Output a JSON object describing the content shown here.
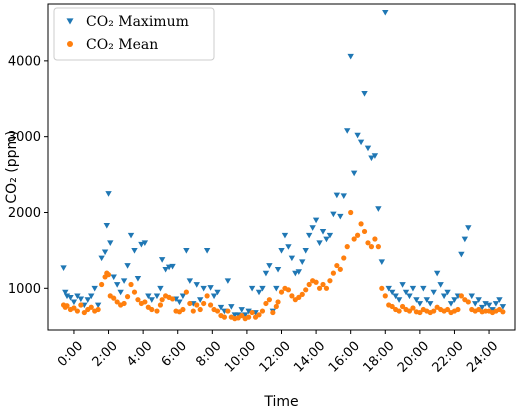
{
  "chart_data": {
    "type": "scatter",
    "xlabel": "Time",
    "ylabel": "CO₂ (ppm)",
    "xlim": [
      -1.5,
      25.5
    ],
    "ylim": [
      450,
      4750
    ],
    "x_ticks": [
      0,
      2,
      4,
      6,
      8,
      10,
      12,
      14,
      16,
      18,
      20,
      22,
      24
    ],
    "x_tick_labels": [
      "0:00",
      "2:00",
      "4:00",
      "6:00",
      "8:00",
      "10:00",
      "12:00",
      "14:00",
      "16:00",
      "18:00",
      "20:00",
      "22:00",
      "24:00"
    ],
    "y_ticks": [
      1000,
      2000,
      3000,
      4000
    ],
    "y_tick_labels": [
      "1000",
      "2000",
      "3000",
      "4000"
    ],
    "grid": false,
    "legend_position": "top-left",
    "series": [
      {
        "name": "CO₂ Maximum",
        "marker": "triangle-down",
        "color": "#1f77b4",
        "points": [
          [
            -0.6,
            1270
          ],
          [
            -0.5,
            950
          ],
          [
            -0.4,
            900
          ],
          [
            -0.2,
            880
          ],
          [
            0.0,
            820
          ],
          [
            0.2,
            900
          ],
          [
            0.4,
            860
          ],
          [
            0.6,
            780
          ],
          [
            0.8,
            850
          ],
          [
            1.0,
            900
          ],
          [
            1.2,
            1000
          ],
          [
            1.4,
            780
          ],
          [
            1.6,
            1400
          ],
          [
            1.8,
            1480
          ],
          [
            1.9,
            1830
          ],
          [
            2.0,
            2250
          ],
          [
            2.1,
            1600
          ],
          [
            2.3,
            1150
          ],
          [
            2.5,
            1050
          ],
          [
            2.7,
            950
          ],
          [
            2.9,
            1100
          ],
          [
            3.1,
            1300
          ],
          [
            3.3,
            1700
          ],
          [
            3.5,
            1500
          ],
          [
            3.7,
            1130
          ],
          [
            3.9,
            1580
          ],
          [
            4.1,
            1600
          ],
          [
            4.3,
            900
          ],
          [
            4.5,
            850
          ],
          [
            4.8,
            900
          ],
          [
            5.0,
            1000
          ],
          [
            5.1,
            1380
          ],
          [
            5.3,
            1250
          ],
          [
            5.5,
            1280
          ],
          [
            5.7,
            1290
          ],
          [
            5.9,
            860
          ],
          [
            6.1,
            820
          ],
          [
            6.3,
            900
          ],
          [
            6.5,
            1500
          ],
          [
            6.7,
            1100
          ],
          [
            6.9,
            800
          ],
          [
            7.1,
            1050
          ],
          [
            7.3,
            850
          ],
          [
            7.5,
            1000
          ],
          [
            7.7,
            1500
          ],
          [
            7.9,
            1010
          ],
          [
            8.1,
            900
          ],
          [
            8.3,
            950
          ],
          [
            8.5,
            750
          ],
          [
            8.7,
            700
          ],
          [
            8.9,
            1100
          ],
          [
            9.1,
            760
          ],
          [
            9.3,
            650
          ],
          [
            9.5,
            650
          ],
          [
            9.7,
            720
          ],
          [
            9.9,
            650
          ],
          [
            10.1,
            700
          ],
          [
            10.3,
            1000
          ],
          [
            10.5,
            680
          ],
          [
            10.7,
            950
          ],
          [
            10.9,
            1000
          ],
          [
            11.1,
            1200
          ],
          [
            11.3,
            1300
          ],
          [
            11.5,
            700
          ],
          [
            11.7,
            1000
          ],
          [
            11.8,
            1250
          ],
          [
            12.0,
            1500
          ],
          [
            12.2,
            1700
          ],
          [
            12.4,
            1550
          ],
          [
            12.6,
            1400
          ],
          [
            12.8,
            1200
          ],
          [
            13.0,
            1220
          ],
          [
            13.2,
            1350
          ],
          [
            13.4,
            1500
          ],
          [
            13.6,
            1700
          ],
          [
            13.8,
            1800
          ],
          [
            14.0,
            1900
          ],
          [
            14.2,
            1600
          ],
          [
            14.4,
            1750
          ],
          [
            14.6,
            1650
          ],
          [
            14.8,
            1700
          ],
          [
            15.0,
            1980
          ],
          [
            15.2,
            2230
          ],
          [
            15.4,
            1950
          ],
          [
            15.6,
            2220
          ],
          [
            15.8,
            3080
          ],
          [
            16.0,
            4060
          ],
          [
            16.2,
            2520
          ],
          [
            16.4,
            3020
          ],
          [
            16.6,
            2930
          ],
          [
            16.8,
            3570
          ],
          [
            17.0,
            2850
          ],
          [
            17.2,
            2720
          ],
          [
            17.4,
            2750
          ],
          [
            17.6,
            2050
          ],
          [
            17.8,
            1350
          ],
          [
            18.0,
            4640
          ],
          [
            18.2,
            1000
          ],
          [
            18.4,
            950
          ],
          [
            18.6,
            900
          ],
          [
            18.8,
            850
          ],
          [
            19.0,
            1050
          ],
          [
            19.2,
            950
          ],
          [
            19.4,
            900
          ],
          [
            19.6,
            1000
          ],
          [
            19.8,
            850
          ],
          [
            20.0,
            800
          ],
          [
            20.2,
            1000
          ],
          [
            20.4,
            850
          ],
          [
            20.6,
            800
          ],
          [
            20.8,
            950
          ],
          [
            21.0,
            1200
          ],
          [
            21.2,
            1050
          ],
          [
            21.4,
            900
          ],
          [
            21.6,
            950
          ],
          [
            21.8,
            800
          ],
          [
            22.0,
            850
          ],
          [
            22.2,
            900
          ],
          [
            22.4,
            1450
          ],
          [
            22.6,
            1650
          ],
          [
            22.8,
            1800
          ],
          [
            23.0,
            900
          ],
          [
            23.2,
            800
          ],
          [
            23.4,
            850
          ],
          [
            23.6,
            750
          ],
          [
            23.8,
            800
          ],
          [
            24.0,
            780
          ],
          [
            24.2,
            720
          ],
          [
            24.4,
            800
          ],
          [
            24.6,
            850
          ],
          [
            24.8,
            760
          ]
        ]
      },
      {
        "name": "CO₂ Mean",
        "marker": "circle",
        "color": "#ff7f0e",
        "points": [
          [
            -0.6,
            780
          ],
          [
            -0.5,
            750
          ],
          [
            -0.4,
            770
          ],
          [
            -0.2,
            720
          ],
          [
            0.0,
            740
          ],
          [
            0.2,
            700
          ],
          [
            0.4,
            780
          ],
          [
            0.6,
            680
          ],
          [
            0.8,
            720
          ],
          [
            1.0,
            750
          ],
          [
            1.2,
            700
          ],
          [
            1.4,
            720
          ],
          [
            1.6,
            1050
          ],
          [
            1.8,
            1150
          ],
          [
            1.9,
            1200
          ],
          [
            2.0,
            1180
          ],
          [
            2.1,
            900
          ],
          [
            2.3,
            870
          ],
          [
            2.5,
            820
          ],
          [
            2.7,
            780
          ],
          [
            2.9,
            800
          ],
          [
            3.1,
            890
          ],
          [
            3.3,
            1050
          ],
          [
            3.5,
            950
          ],
          [
            3.7,
            850
          ],
          [
            3.9,
            800
          ],
          [
            4.1,
            820
          ],
          [
            4.3,
            750
          ],
          [
            4.5,
            720
          ],
          [
            4.8,
            700
          ],
          [
            5.0,
            780
          ],
          [
            5.1,
            850
          ],
          [
            5.3,
            900
          ],
          [
            5.5,
            880
          ],
          [
            5.7,
            860
          ],
          [
            5.9,
            700
          ],
          [
            6.1,
            690
          ],
          [
            6.3,
            720
          ],
          [
            6.5,
            950
          ],
          [
            6.7,
            800
          ],
          [
            6.9,
            700
          ],
          [
            7.1,
            780
          ],
          [
            7.3,
            720
          ],
          [
            7.5,
            800
          ],
          [
            7.7,
            900
          ],
          [
            7.9,
            780
          ],
          [
            8.1,
            720
          ],
          [
            8.3,
            700
          ],
          [
            8.5,
            640
          ],
          [
            8.7,
            620
          ],
          [
            8.9,
            700
          ],
          [
            9.1,
            620
          ],
          [
            9.3,
            600
          ],
          [
            9.5,
            610
          ],
          [
            9.7,
            640
          ],
          [
            9.9,
            600
          ],
          [
            10.1,
            620
          ],
          [
            10.3,
            680
          ],
          [
            10.5,
            620
          ],
          [
            10.7,
            650
          ],
          [
            10.9,
            700
          ],
          [
            11.1,
            800
          ],
          [
            11.3,
            850
          ],
          [
            11.5,
            680
          ],
          [
            11.7,
            760
          ],
          [
            11.8,
            820
          ],
          [
            12.0,
            950
          ],
          [
            12.2,
            1000
          ],
          [
            12.4,
            980
          ],
          [
            12.6,
            900
          ],
          [
            12.8,
            850
          ],
          [
            13.0,
            880
          ],
          [
            13.2,
            920
          ],
          [
            13.4,
            980
          ],
          [
            13.6,
            1050
          ],
          [
            13.8,
            1100
          ],
          [
            14.0,
            1080
          ],
          [
            14.2,
            1000
          ],
          [
            14.4,
            1050
          ],
          [
            14.6,
            1000
          ],
          [
            14.8,
            1100
          ],
          [
            15.0,
            1200
          ],
          [
            15.2,
            1300
          ],
          [
            15.4,
            1250
          ],
          [
            15.6,
            1400
          ],
          [
            15.8,
            1550
          ],
          [
            16.0,
            2000
          ],
          [
            16.2,
            1650
          ],
          [
            16.4,
            1700
          ],
          [
            16.6,
            1850
          ],
          [
            16.8,
            1750
          ],
          [
            17.0,
            1600
          ],
          [
            17.2,
            1550
          ],
          [
            17.4,
            1650
          ],
          [
            17.6,
            1550
          ],
          [
            17.8,
            1000
          ],
          [
            18.0,
            900
          ],
          [
            18.2,
            780
          ],
          [
            18.4,
            760
          ],
          [
            18.6,
            720
          ],
          [
            18.8,
            700
          ],
          [
            19.0,
            760
          ],
          [
            19.2,
            720
          ],
          [
            19.4,
            700
          ],
          [
            19.6,
            740
          ],
          [
            19.8,
            690
          ],
          [
            20.0,
            680
          ],
          [
            20.2,
            720
          ],
          [
            20.4,
            700
          ],
          [
            20.6,
            680
          ],
          [
            20.8,
            700
          ],
          [
            21.0,
            750
          ],
          [
            21.2,
            720
          ],
          [
            21.4,
            700
          ],
          [
            21.6,
            720
          ],
          [
            21.8,
            680
          ],
          [
            22.0,
            700
          ],
          [
            22.2,
            720
          ],
          [
            22.4,
            900
          ],
          [
            22.6,
            850
          ],
          [
            22.8,
            820
          ],
          [
            23.0,
            720
          ],
          [
            23.2,
            700
          ],
          [
            23.4,
            720
          ],
          [
            23.6,
            690
          ],
          [
            23.8,
            700
          ],
          [
            24.0,
            700
          ],
          [
            24.2,
            680
          ],
          [
            24.4,
            700
          ],
          [
            24.6,
            720
          ],
          [
            24.8,
            690
          ]
        ]
      }
    ]
  }
}
